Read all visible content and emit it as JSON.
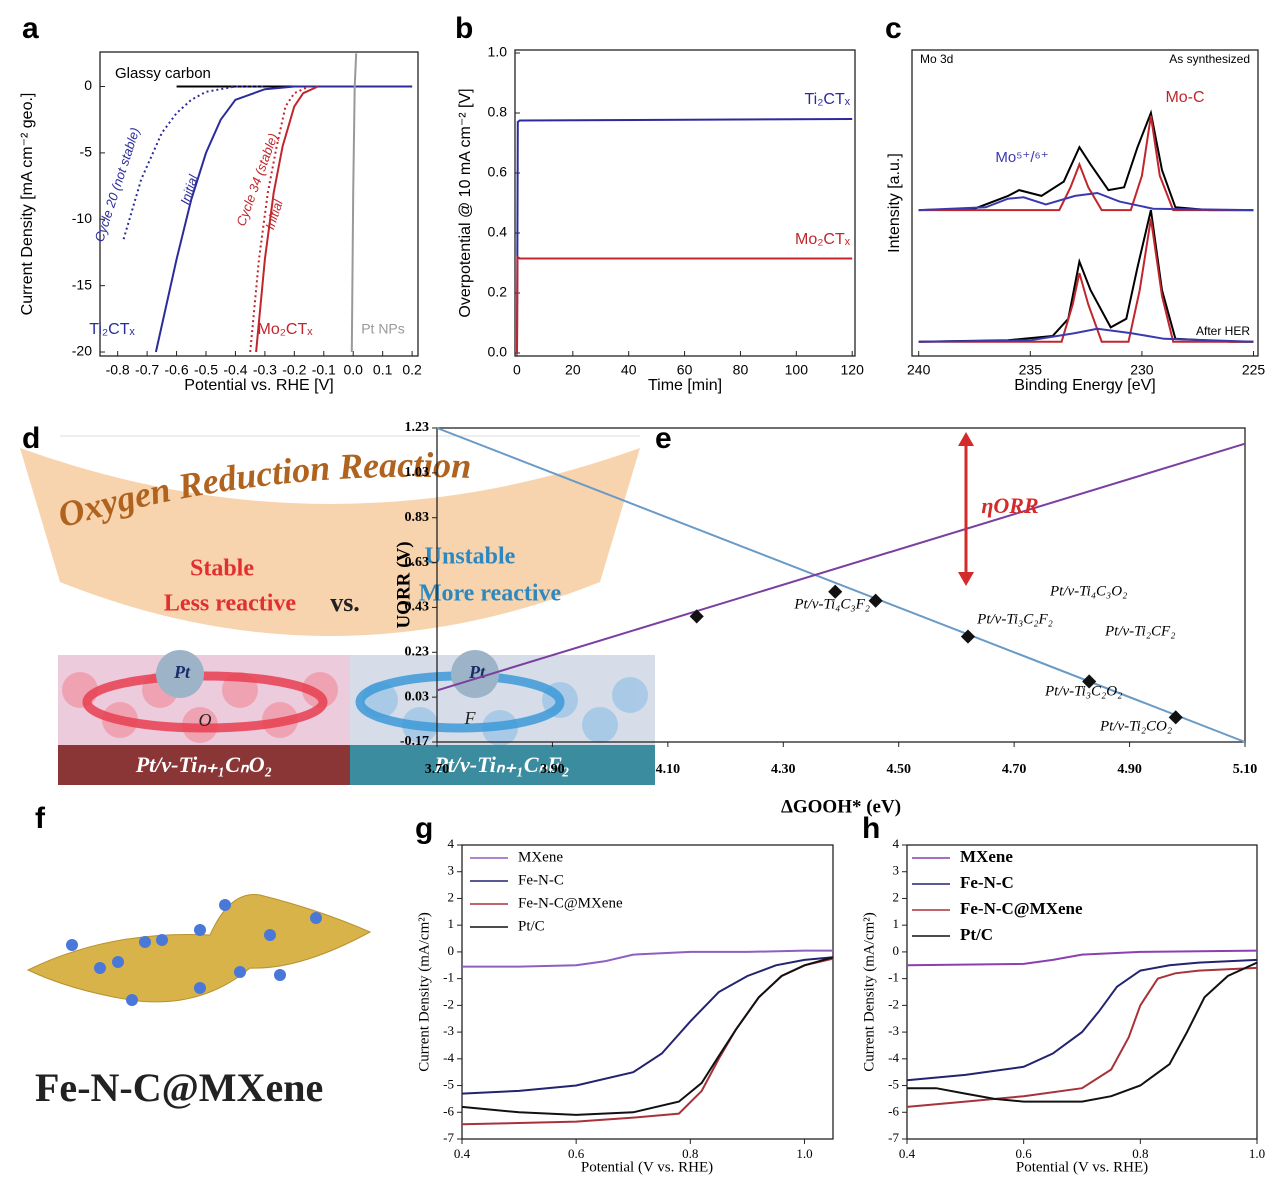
{
  "chart_data": [
    {
      "type": "line",
      "panel_label": "a",
      "xlabel": "Potential vs. RHE [V]",
      "ylabel": "Current Density [mA cm⁻² geo.]",
      "xlim": [
        -0.86,
        0.22
      ],
      "ylim": [
        -20.3,
        2.6
      ],
      "xticks": [
        -0.8,
        -0.7,
        -0.6,
        -0.5,
        -0.4,
        -0.3,
        -0.2,
        -0.1,
        {
          "value": 0,
          "label": "0.0"
        },
        0.1,
        0.2
      ],
      "yticks": [
        0,
        -5,
        -10,
        -15,
        -20
      ],
      "series": [
        {
          "color": "#000000",
          "line_style": "solid",
          "x": [
            -0.6,
            0.2
          ],
          "values": [
            0,
            0
          ]
        },
        {
          "color": "#2b2b9e",
          "line_style": "solid",
          "x": [
            -0.67,
            -0.6,
            -0.55,
            -0.5,
            -0.45,
            -0.4,
            -0.3,
            -0.2,
            0.2
          ],
          "values": [
            -20,
            -13,
            -8.5,
            -5,
            -2.5,
            -1,
            -0.2,
            0,
            0
          ]
        },
        {
          "color": "#2b2b9e",
          "line_style": "dotted",
          "x": [
            -0.78,
            -0.72,
            -0.65,
            -0.6,
            -0.55,
            -0.5,
            -0.4,
            -0.3
          ],
          "values": [
            -11.5,
            -7,
            -3.5,
            -2,
            -1,
            -0.4,
            0,
            0
          ]
        },
        {
          "color": "#c0262c",
          "line_style": "solid",
          "x": [
            -0.33,
            -0.3,
            -0.27,
            -0.24,
            -0.2,
            -0.17,
            -0.12
          ],
          "values": [
            -20,
            -13,
            -8,
            -4.5,
            -1.5,
            -0.5,
            0
          ]
        },
        {
          "color": "#c0262c",
          "line_style": "dotted",
          "x": [
            -0.35,
            -0.32,
            -0.29,
            -0.26,
            -0.23,
            -0.2,
            -0.15
          ],
          "values": [
            -20,
            -13,
            -8,
            -4.5,
            -1.5,
            -0.5,
            0
          ]
        },
        {
          "color": "#999999",
          "line_style": "solid",
          "x": [
            -0.005,
            0,
            0.005,
            0.01
          ],
          "values": [
            -20,
            -8,
            0,
            2.5
          ]
        }
      ],
      "annotations": [
        {
          "text": "Glassy carbon",
          "color": "#000000"
        },
        {
          "text": "Cycle 20 (not stable)",
          "color": "#2b2b9e"
        },
        {
          "text": "Initial",
          "color": "#2b2b9e"
        },
        {
          "text": "Cycle 34 (stable)",
          "color": "#c0262c"
        },
        {
          "text": "Initial",
          "color": "#c0262c"
        },
        {
          "text": "Ti₂CTₓ",
          "color": "#2b2b9e"
        },
        {
          "text": "Mo₂CTₓ",
          "color": "#c0262c"
        },
        {
          "text": "Pt NPs",
          "color": "#999999"
        }
      ]
    },
    {
      "type": "line",
      "panel_label": "b",
      "xlabel": "Time [min]",
      "ylabel": "Overpotential @ 10 mA cm⁻² [V]",
      "xlim": [
        -0.7,
        121
      ],
      "ylim": [
        -0.01,
        1.01
      ],
      "xticks": [
        0,
        20,
        40,
        60,
        80,
        100,
        120
      ],
      "yticks": [
        {
          "value": 0,
          "label": "0.0"
        },
        0.2,
        0.4,
        0.6,
        0.8,
        {
          "value": 1,
          "label": "1.0"
        }
      ],
      "series": [
        {
          "name": "Ti₂CTₓ",
          "color": "#2b2b9e",
          "line_style": "solid",
          "x": [
            0,
            0.3,
            1,
            120
          ],
          "values": [
            0,
            0.77,
            0.775,
            0.78
          ]
        },
        {
          "name": "Mo₂CTₓ",
          "color": "#c0262c",
          "line_style": "solid",
          "x": [
            0,
            0.2,
            1,
            120
          ],
          "values": [
            0,
            0.32,
            0.315,
            0.315
          ]
        }
      ]
    },
    {
      "type": "line",
      "panel_label": "c",
      "xlabel": "Binding Energy [eV]",
      "ylabel": "Intensity [a.u.]",
      "xlim": [
        240.3,
        224.8
      ],
      "ylim": [
        -3,
        104
      ],
      "xticks": [
        240,
        235,
        230,
        225
      ],
      "yticks": [],
      "series": [
        {
          "color": "#000000",
          "line_style": "solid",
          "x": [
            240,
            237.5,
            236,
            235.5,
            234.5,
            233.5,
            232.8,
            232.3,
            231.5,
            230.8,
            230.2,
            229.6,
            229.1,
            228.5,
            227,
            225
          ],
          "values": [
            48,
            48.5,
            53,
            55,
            53,
            58,
            70,
            64,
            55,
            56,
            70,
            82,
            62,
            49,
            48,
            48
          ]
        },
        {
          "color": "#c0262c",
          "line_style": "solid",
          "x": [
            240,
            233.7,
            233.2,
            232.8,
            232.4,
            231.8,
            230.5,
            230,
            229.6,
            229.2,
            228.6,
            225
          ],
          "values": [
            48,
            48,
            56,
            64,
            56,
            48,
            48,
            60,
            81,
            60,
            48,
            48
          ]
        },
        {
          "color": "#3a3ab0",
          "line_style": "solid",
          "x": [
            240,
            237,
            236,
            235.3,
            234.3,
            233,
            232,
            231,
            229.5,
            225
          ],
          "values": [
            48,
            49,
            52,
            52.5,
            50,
            53,
            54,
            51,
            48.5,
            48
          ]
        },
        {
          "color": "#000000",
          "line_style": "solid",
          "x": [
            240,
            236,
            234,
            233.3,
            232.8,
            232.3,
            231.4,
            230.7,
            230.2,
            229.6,
            229.1,
            228.5,
            226,
            225
          ],
          "values": [
            2,
            2.5,
            4,
            10,
            30,
            20,
            7,
            10,
            28,
            48,
            20,
            3,
            2,
            2
          ]
        },
        {
          "color": "#c0262c",
          "line_style": "solid",
          "x": [
            240,
            233.6,
            233.1,
            232.8,
            232.4,
            231.8,
            230.6,
            230.1,
            229.6,
            229.1,
            228.6,
            225
          ],
          "values": [
            2,
            2,
            15,
            26,
            15,
            2,
            2,
            20,
            45,
            18,
            2,
            2
          ]
        },
        {
          "color": "#3a3ab0",
          "line_style": "solid",
          "x": [
            240,
            235,
            233,
            232,
            230.5,
            229,
            225
          ],
          "values": [
            2,
            2.5,
            5,
            6.5,
            5,
            3,
            2
          ]
        }
      ],
      "annotations": [
        {
          "text": "Mo 3d",
          "color": "#000000"
        },
        {
          "text": "As synthesized",
          "color": "#000000"
        },
        {
          "text": "After HER",
          "color": "#000000"
        },
        {
          "text": "Mo-C",
          "color": "#c0262c"
        },
        {
          "text": "Mo⁵⁺/⁶⁺",
          "color": "#3a3ab0"
        }
      ]
    },
    {
      "type": "scatter",
      "panel_label": "e",
      "xlabel": "ΔGOOH* (eV)",
      "ylabel": "UORR (V)",
      "xlim": [
        3.7,
        5.1
      ],
      "ylim": [
        -0.17,
        1.23
      ],
      "xticks": [
        {
          "value": 3.7,
          "label": "3.70"
        },
        {
          "value": 3.9,
          "label": "3.90"
        },
        {
          "value": 4.1,
          "label": "4.10"
        },
        {
          "value": 4.3,
          "label": "4.30"
        },
        {
          "value": 4.5,
          "label": "4.50"
        },
        {
          "value": 4.7,
          "label": "4.70"
        },
        {
          "value": 4.9,
          "label": "4.90"
        },
        {
          "value": 5.1,
          "label": "5.10"
        }
      ],
      "yticks": [
        -0.17,
        0.03,
        0.23,
        0.43,
        0.63,
        0.83,
        1.03,
        1.23
      ],
      "series": [
        {
          "color": "#6a9ac6",
          "line_style": "solid",
          "x": [
            3.7,
            5.1
          ],
          "values": [
            1.23,
            -0.17
          ]
        },
        {
          "color": "#7b3fa0",
          "line_style": "solid",
          "x": [
            3.7,
            5.1
          ],
          "values": [
            0.06,
            1.16
          ]
        }
      ],
      "points": {
        "color": "#111111",
        "x": [
          4.15,
          4.39,
          4.46,
          4.62,
          4.83,
          4.98
        ],
        "values": [
          0.39,
          0.5,
          0.46,
          0.3,
          0.1,
          -0.06
        ],
        "labels": [
          "Pt/v-Ti₄C₃F₂",
          "Pt/v-Ti₃C₂F₂",
          "Pt/v-Ti₄C₃O₂",
          "Pt/v-Ti₂CF₂",
          "Pt/v-Ti₃C₂O₂",
          "Pt/v-Ti₂CO₂"
        ]
      },
      "annotations": [
        {
          "text": "ηORR",
          "color": "#d42a2a"
        }
      ]
    },
    {
      "type": "line",
      "panel_label": "g",
      "legend": "upper left",
      "xlabel": "Potential (V vs. RHE)",
      "ylabel": "Current Density (mA/cm²)",
      "xlim": [
        0.4,
        1.05
      ],
      "ylim": [
        -7,
        4
      ],
      "xticks": [
        0.4,
        0.6,
        0.8,
        {
          "value": 1,
          "label": "1.0"
        }
      ],
      "yticks": [
        4,
        3,
        2,
        1,
        0,
        -1,
        -2,
        -3,
        -4,
        -5,
        -6,
        -7
      ],
      "series": [
        {
          "name": "MXene",
          "color": "#8c5fc0",
          "line_style": "solid",
          "x": [
            0.4,
            0.5,
            0.6,
            0.65,
            0.7,
            0.8,
            0.9,
            1.0,
            1.05
          ],
          "values": [
            -0.55,
            -0.55,
            -0.5,
            -0.35,
            -0.1,
            0,
            0,
            0.05,
            0.05
          ]
        },
        {
          "name": "Fe-N-C",
          "color": "#23236e",
          "line_style": "solid",
          "x": [
            0.4,
            0.5,
            0.6,
            0.7,
            0.75,
            0.8,
            0.85,
            0.9,
            0.95,
            1.0,
            1.05
          ],
          "values": [
            -5.3,
            -5.2,
            -5,
            -4.5,
            -3.8,
            -2.6,
            -1.5,
            -0.9,
            -0.5,
            -0.3,
            -0.2
          ]
        },
        {
          "name": "Fe-N-C@MXene",
          "color": "#a8323a",
          "line_style": "solid",
          "x": [
            0.4,
            0.6,
            0.7,
            0.78,
            0.82,
            0.85,
            0.88,
            0.92,
            0.96,
            1.0,
            1.05
          ],
          "values": [
            -6.45,
            -6.35,
            -6.2,
            -6.05,
            -5.2,
            -4,
            -2.9,
            -1.7,
            -0.9,
            -0.5,
            -0.25
          ]
        },
        {
          "name": "Pt/C",
          "color": "#111111",
          "line_style": "solid",
          "x": [
            0.4,
            0.5,
            0.6,
            0.7,
            0.78,
            0.82,
            0.85,
            0.88,
            0.92,
            0.96,
            1.0,
            1.05
          ],
          "values": [
            -5.8,
            -6,
            -6.1,
            -6,
            -5.6,
            -4.9,
            -3.9,
            -2.9,
            -1.7,
            -0.9,
            -0.5,
            -0.2
          ]
        }
      ]
    },
    {
      "type": "line",
      "panel_label": "h",
      "legend": "upper left",
      "xlabel": "Potential (V vs. RHE)",
      "ylabel": "Current Density (mA/cm²)",
      "xlim": [
        0.4,
        1.0
      ],
      "ylim": [
        -7,
        4
      ],
      "xticks": [
        0.4,
        0.6,
        0.8,
        {
          "value": 1,
          "label": "1.0"
        }
      ],
      "yticks": [
        4,
        3,
        2,
        1,
        0,
        -1,
        -2,
        -3,
        -4,
        -5,
        -6,
        -7
      ],
      "series": [
        {
          "name": "MXene",
          "color": "#8c3fb0",
          "line_style": "solid",
          "x": [
            0.4,
            0.6,
            0.65,
            0.7,
            0.8,
            1.0
          ],
          "values": [
            -0.5,
            -0.45,
            -0.3,
            -0.1,
            0,
            0.05
          ]
        },
        {
          "name": "Fe-N-C",
          "color": "#23236e",
          "line_style": "solid",
          "x": [
            0.4,
            0.5,
            0.6,
            0.65,
            0.7,
            0.73,
            0.76,
            0.8,
            0.85,
            0.9,
            1.0
          ],
          "values": [
            -4.8,
            -4.6,
            -4.3,
            -3.8,
            -3,
            -2.2,
            -1.3,
            -0.7,
            -0.5,
            -0.4,
            -0.3
          ]
        },
        {
          "name": "Fe-N-C@MXene",
          "color": "#a8323a",
          "line_style": "solid",
          "x": [
            0.4,
            0.5,
            0.6,
            0.7,
            0.75,
            0.78,
            0.8,
            0.83,
            0.86,
            0.9,
            1.0
          ],
          "values": [
            -5.8,
            -5.6,
            -5.4,
            -5.1,
            -4.4,
            -3.2,
            -2,
            -1,
            -0.8,
            -0.7,
            -0.6
          ]
        },
        {
          "name": "Pt/C",
          "color": "#111111",
          "line_style": "solid",
          "x": [
            0.4,
            0.45,
            0.5,
            0.55,
            0.6,
            0.7,
            0.75,
            0.8,
            0.85,
            0.88,
            0.91,
            0.95,
            1.0
          ],
          "values": [
            -5.1,
            -5.1,
            -5.3,
            -5.5,
            -5.6,
            -5.6,
            -5.4,
            -5,
            -4.2,
            -3,
            -1.7,
            -0.9,
            -0.4
          ]
        }
      ]
    }
  ],
  "diagram_d": {
    "panel_label": "d",
    "title": "Oxygen Reduction Reaction",
    "left_1": "Stable",
    "left_2": "Less reactive",
    "middle": "vs.",
    "right_1": "Unstable",
    "right_2": "More reactive",
    "atom_left": "Pt",
    "atom_right": "Pt",
    "ring_left": "O",
    "ring_right": "F",
    "bar_left": "Pt/v-Tiₙ₊₁CₙO₂",
    "bar_right": "Pt/v-Tiₙ₊₁CₙF₂"
  },
  "diagram_f": {
    "panel_label": "f",
    "caption": "Fe-N-C@MXene"
  }
}
